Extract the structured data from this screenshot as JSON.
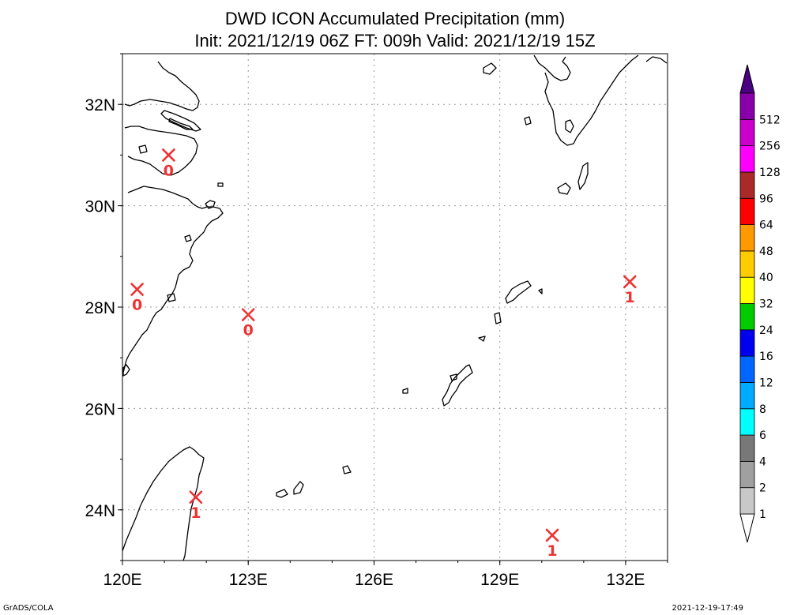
{
  "title": {
    "line1": "DWD ICON Accumulated Precipitation (mm)",
    "line2": "Init: 2021/12/19 06Z  FT: 009h  Valid: 2021/12/19 15Z"
  },
  "axes": {
    "lon_range": [
      120,
      133
    ],
    "lat_range": [
      23,
      33
    ],
    "lon_ticks": [
      {
        "value": 120,
        "label": "120E"
      },
      {
        "value": 123,
        "label": "123E"
      },
      {
        "value": 126,
        "label": "126E"
      },
      {
        "value": 129,
        "label": "129E"
      },
      {
        "value": 132,
        "label": "132E"
      }
    ],
    "lat_ticks": [
      {
        "value": 24,
        "label": "24N"
      },
      {
        "value": 26,
        "label": "26N"
      },
      {
        "value": 28,
        "label": "28N"
      },
      {
        "value": 30,
        "label": "30N"
      },
      {
        "value": 32,
        "label": "32N"
      }
    ],
    "grid": true
  },
  "stations": [
    {
      "lon": 121.1,
      "lat": 31.0,
      "value": "0"
    },
    {
      "lon": 120.35,
      "lat": 28.35,
      "value": "0"
    },
    {
      "lon": 123.0,
      "lat": 27.85,
      "value": "0"
    },
    {
      "lon": 121.75,
      "lat": 24.25,
      "value": "1"
    },
    {
      "lon": 130.25,
      "lat": 23.5,
      "value": "1"
    },
    {
      "lon": 132.1,
      "lat": 28.5,
      "value": "1"
    }
  ],
  "station_color": "#ee3333",
  "colorbar": {
    "levels": [
      {
        "label": "1",
        "color": "#c8c8c8"
      },
      {
        "label": "2",
        "color": "#a0a0a0"
      },
      {
        "label": "4",
        "color": "#787878"
      },
      {
        "label": "6",
        "color": "#00ffff"
      },
      {
        "label": "8",
        "color": "#00aaff"
      },
      {
        "label": "12",
        "color": "#0066ff"
      },
      {
        "label": "16",
        "color": "#0000ee"
      },
      {
        "label": "24",
        "color": "#00cc00"
      },
      {
        "label": "32",
        "color": "#ffff00"
      },
      {
        "label": "40",
        "color": "#ffcc00"
      },
      {
        "label": "48",
        "color": "#ff9900"
      },
      {
        "label": "64",
        "color": "#ff0000"
      },
      {
        "label": "96",
        "color": "#aa2a2a"
      },
      {
        "label": "128",
        "color": "#ff00ff"
      },
      {
        "label": "256",
        "color": "#cc00cc"
      },
      {
        "label": "512",
        "color": "#8800aa"
      }
    ],
    "bottom_triangle_color": "#ffffff",
    "top_triangle_color": "#4b0082"
  },
  "footer": {
    "left": "GrADS/COLA",
    "right": "2021-12-19-17:49"
  }
}
